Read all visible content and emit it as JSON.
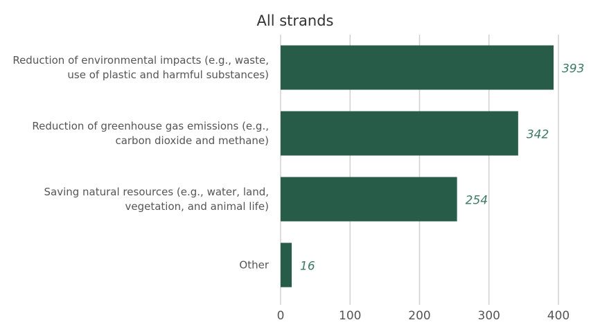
{
  "chart_data": {
    "type": "bar",
    "orientation": "horizontal",
    "title": "All strands",
    "categories": [
      "Reduction of environmental impacts (e.g., waste, use of plastic and harmful substances)",
      "Reduction of greenhouse gas emissions (e.g., carbon dioxide and methane)",
      "Saving natural resources (e.g., water, land, vegetation, and animal life)",
      "Other"
    ],
    "values": [
      393,
      342,
      254,
      16
    ],
    "color": "#275c48",
    "label_color": "#3d7a63",
    "xlim": [
      0,
      400
    ],
    "xticks": [
      0,
      100,
      200,
      300,
      400
    ],
    "grid": true
  }
}
